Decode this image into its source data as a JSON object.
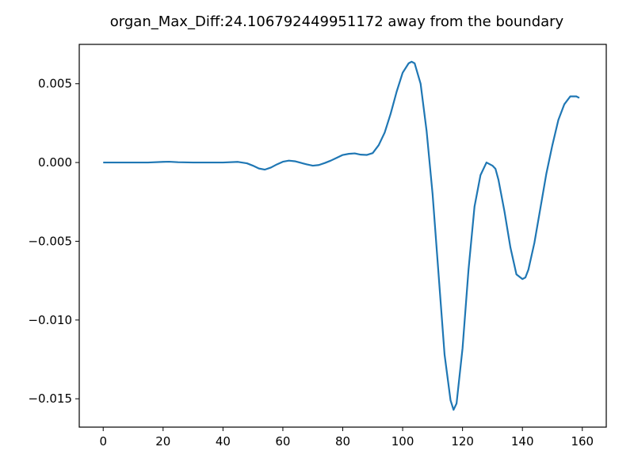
{
  "chart_data": {
    "type": "line",
    "title": "organ_Max_Diff:24.106792449951172 away from the boundary",
    "xlabel": "",
    "ylabel": "",
    "xlim": [
      -8,
      168
    ],
    "ylim": [
      -0.0168,
      0.0075
    ],
    "x_ticks": [
      {
        "value": 0,
        "label": "0"
      },
      {
        "value": 20,
        "label": "20"
      },
      {
        "value": 40,
        "label": "40"
      },
      {
        "value": 60,
        "label": "60"
      },
      {
        "value": 80,
        "label": "80"
      },
      {
        "value": 100,
        "label": "100"
      },
      {
        "value": 120,
        "label": "120"
      },
      {
        "value": 140,
        "label": "140"
      },
      {
        "value": 160,
        "label": "160"
      }
    ],
    "y_ticks": [
      {
        "value": 0.005,
        "label": "0.005"
      },
      {
        "value": 0.0,
        "label": "0.000"
      },
      {
        "value": -0.005,
        "label": "−0.005"
      },
      {
        "value": -0.01,
        "label": "−0.010"
      },
      {
        "value": -0.015,
        "label": "−0.015"
      }
    ],
    "grid": false,
    "legend": "none",
    "line_color": "#1f77b4",
    "series": [
      {
        "x": [
          0,
          5,
          10,
          15,
          20,
          22,
          25,
          30,
          35,
          40,
          45,
          48,
          50,
          52,
          54,
          56,
          58,
          60,
          62,
          64,
          66,
          68,
          70,
          72,
          74,
          76,
          78,
          80,
          82,
          84,
          86,
          88,
          90,
          92,
          94,
          96,
          98,
          100,
          102,
          103,
          104,
          106,
          108,
          110,
          112,
          114,
          116,
          117,
          118,
          120,
          122,
          124,
          126,
          128,
          130,
          131,
          132,
          134,
          136,
          138,
          140,
          141,
          142,
          144,
          146,
          148,
          150,
          152,
          154,
          156,
          158,
          159
        ],
        "y": [
          0.0,
          0.0,
          0.0,
          0.0,
          4e-05,
          5e-05,
          2e-05,
          0.0,
          0.0,
          0.0,
          4e-05,
          -5e-05,
          -0.0002,
          -0.00038,
          -0.00045,
          -0.00032,
          -0.00012,
          5e-05,
          0.00012,
          8e-05,
          -2e-05,
          -0.00012,
          -0.0002,
          -0.00016,
          -3e-05,
          0.00012,
          0.0003,
          0.00048,
          0.00055,
          0.00058,
          0.0005,
          0.00048,
          0.0006,
          0.0011,
          0.0019,
          0.0031,
          0.0045,
          0.0057,
          0.0063,
          0.0064,
          0.0063,
          0.005,
          0.002,
          -0.002,
          -0.0071,
          -0.0122,
          -0.0151,
          -0.0157,
          -0.0153,
          -0.0118,
          -0.0068,
          -0.0028,
          -0.0008,
          0.0,
          -0.0002,
          -0.0004,
          -0.0011,
          -0.0031,
          -0.0054,
          -0.0071,
          -0.0074,
          -0.0073,
          -0.0068,
          -0.0051,
          -0.0029,
          -0.0007,
          0.0011,
          0.0027,
          0.0037,
          0.0042,
          0.0042,
          0.0041
        ]
      }
    ]
  }
}
